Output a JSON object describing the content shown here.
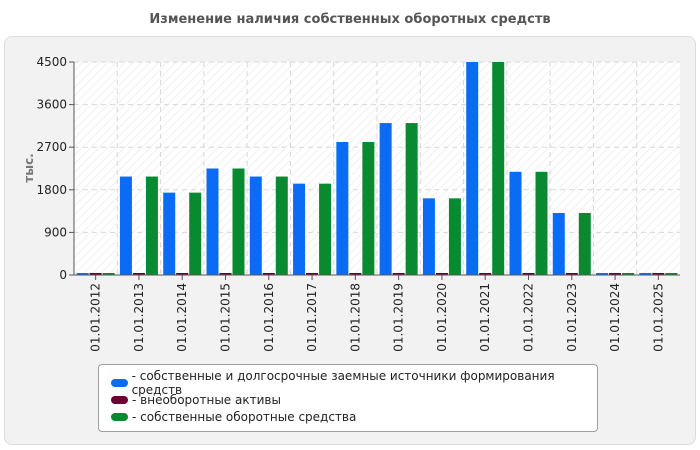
{
  "colors": {
    "series1": "#0a6cf5",
    "series2": "#6a0032",
    "series3": "#0a8a30"
  },
  "chart_data": {
    "type": "bar",
    "title": "Изменение наличия собственных оборотных средств",
    "ylabel": "тыс.",
    "xlabel": "",
    "ylim": [
      0,
      4500
    ],
    "yticks": [
      0,
      900,
      1800,
      2700,
      3600,
      4500
    ],
    "grid": true,
    "legend_position": "bottom",
    "categories": [
      "01.01.2012",
      "01.01.2013",
      "01.01.2014",
      "01.01.2015",
      "01.01.2016",
      "01.01.2017",
      "01.01.2018",
      "01.01.2019",
      "01.01.2020",
      "01.01.2021",
      "01.01.2022",
      "01.01.2023",
      "01.01.2024",
      "01.01.2025"
    ],
    "series": [
      {
        "name": "- собственные и долгосрочные заемные источники формирования средств",
        "values": [
          0,
          2080,
          1740,
          2250,
          2080,
          1930,
          2810,
          3210,
          1620,
          4500,
          2180,
          1310,
          0,
          0
        ]
      },
      {
        "name": "- внеоборотные активы",
        "values": [
          0,
          0,
          0,
          0,
          0,
          0,
          0,
          0,
          0,
          0,
          0,
          0,
          0,
          0
        ]
      },
      {
        "name": "- собственные оборотные средства",
        "values": [
          0,
          2080,
          1740,
          2250,
          2080,
          1930,
          2810,
          3210,
          1620,
          4500,
          2180,
          1310,
          0,
          0
        ]
      }
    ]
  }
}
